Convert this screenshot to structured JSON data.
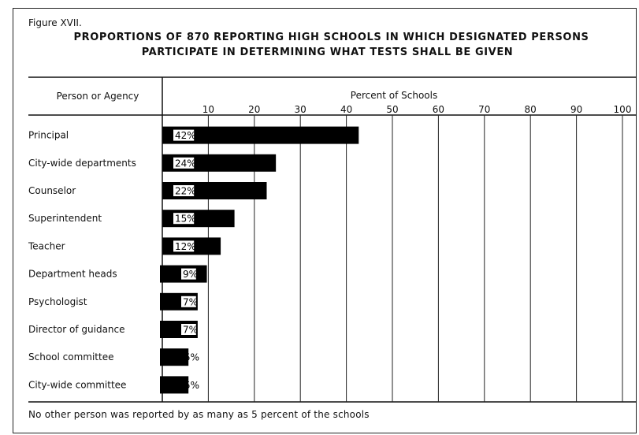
{
  "figure_label": "Figure XVII.",
  "title_line1": "PROPORTIONS OF 870 REPORTING HIGH SCHOOLS IN WHICH DESIGNATED PERSONS",
  "title_line2": "PARTICIPATE IN DETERMINING WHAT TESTS SHALL BE GIVEN",
  "column_header": "Person or Agency",
  "footnote": "No other person was reported by as many as 5 percent of the schools",
  "chart_data": {
    "type": "bar",
    "orientation": "horizontal",
    "xlabel": "Percent of Schools",
    "xlim": [
      0,
      100
    ],
    "ticks": [
      10,
      20,
      30,
      40,
      50,
      60,
      70,
      80,
      90,
      100
    ],
    "grid": true,
    "categories": [
      "Principal",
      "City-wide departments",
      "Counselor",
      "Superintendent",
      "Teacher",
      "Department heads",
      "Psychologist",
      "Director of guidance",
      "School committee",
      "City-wide committee"
    ],
    "values": [
      42,
      24,
      22,
      15,
      12,
      9,
      7,
      7,
      5,
      5
    ],
    "labels": [
      "42%",
      "24%",
      "22%",
      "15%",
      "12%",
      "9%",
      "7%",
      "7%",
      "5%",
      "5%"
    ],
    "bar_color": "#000000"
  }
}
